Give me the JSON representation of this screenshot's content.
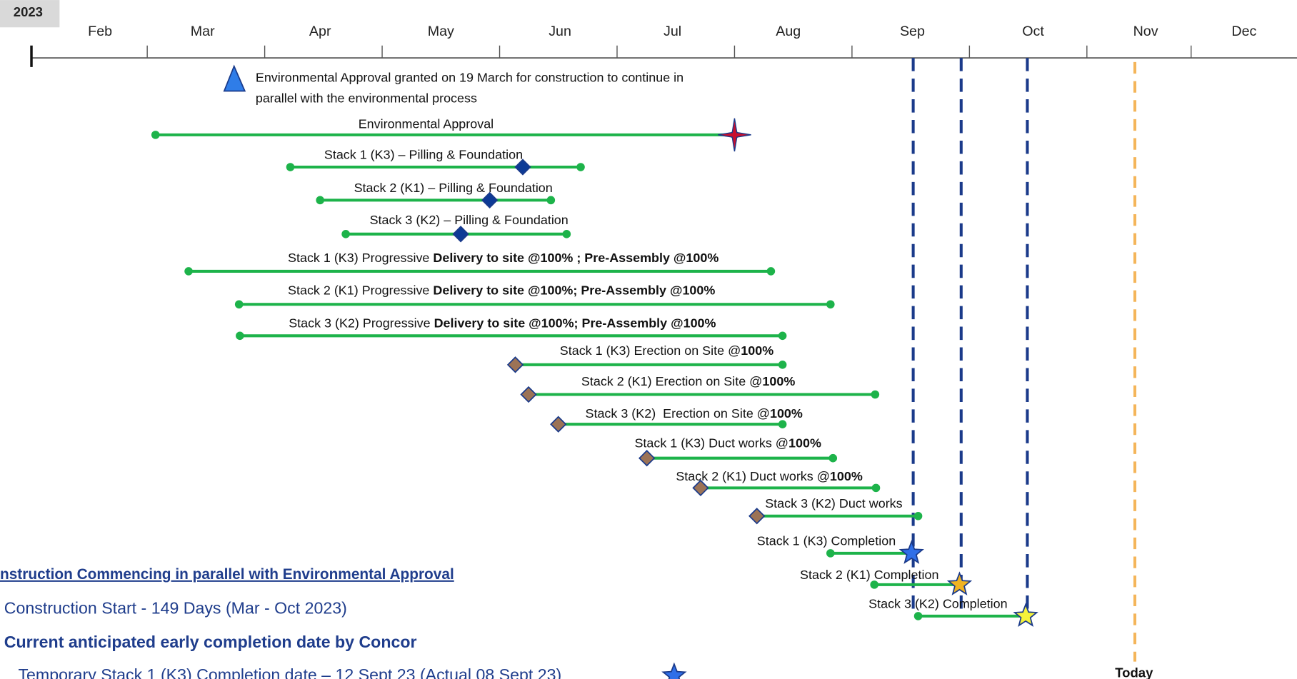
{
  "year": "2023",
  "months": [
    "Feb",
    "Mar",
    "Apr",
    "May",
    "Jun",
    "Jul",
    "Aug",
    "Sep",
    "Oct",
    "Nov",
    "Dec"
  ],
  "approval_note": [
    "Environmental Approval granted on 19 March for construction to continue in",
    "parallel with the environmental process"
  ],
  "tasks": [
    {
      "label": "Environmental Approval"
    },
    {
      "label": "Stack 1 (K3) – Pilling & Foundation"
    },
    {
      "label": "Stack 2 (K1) – Pilling & Foundation"
    },
    {
      "label": "Stack 3 (K2) – Pilling & Foundation"
    },
    {
      "label": "Stack 1 (K3) Progressive ",
      "bold": "Delivery to site @100% ; Pre-Assembly @100%"
    },
    {
      "label": "Stack 2 (K1) Progressive ",
      "bold": "Delivery to site @100%; Pre-Assembly @100%"
    },
    {
      "label": "Stack 3 (K2) Progressive ",
      "bold": "Delivery to site @100%; Pre-Assembly @100%"
    },
    {
      "label": "Stack 1 (K3) Erection on Site @",
      "bold": "100%"
    },
    {
      "label": "Stack 2 (K1) Erection on Site @",
      "bold": "100%"
    },
    {
      "label": "Stack 3 (K2)  Erection on Site @",
      "bold": "100%"
    },
    {
      "label": "Stack 1 (K3) Duct works @",
      "bold": "100%"
    },
    {
      "label": "Stack 2 (K1) Duct works @",
      "bold": "100%"
    },
    {
      "label": "Stack 3 (K2) Duct works"
    },
    {
      "label": "Stack 1 (K3) Completion"
    },
    {
      "label": "Stack 2 (K1) Completion"
    },
    {
      "label": "Stack 3 (K2) Completion"
    }
  ],
  "today": "Today",
  "notes": {
    "heading": "nstruction Commencing in parallel with Environmental Approval",
    "start": "Construction Start - 149 Days (Mar - Oct 2023)",
    "anticipated": "Current anticipated early completion date by Concor",
    "temporary": "Temporary Stack 1 (K3) Completion date – 12 Sept 23 (Actual 08 Sept 23)"
  }
}
